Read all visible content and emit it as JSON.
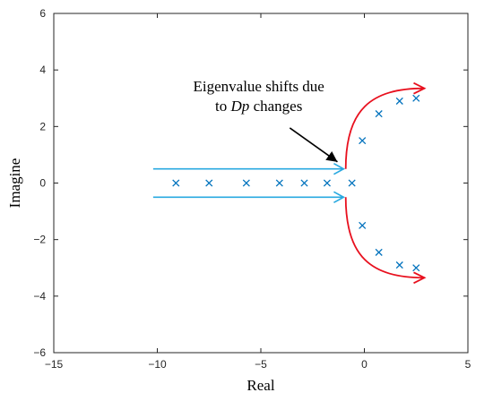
{
  "chart_data": {
    "type": "scatter",
    "xlabel": "Real",
    "ylabel": "Imagine",
    "xlim": [
      -15,
      5
    ],
    "ylim": [
      -6,
      6
    ],
    "xticks": [
      -15,
      -10,
      -5,
      0,
      5
    ],
    "yticks": [
      -6,
      -4,
      -2,
      0,
      2,
      4,
      6
    ],
    "grid": false,
    "marker": "x",
    "colors": {
      "points": "#0072BD",
      "shift_arrows": "#29A9E0",
      "red_arrows": "#E8101E",
      "annotation_arrow": "#000000"
    },
    "series": [
      {
        "points": [
          [
            -9.1,
            0
          ],
          [
            -7.5,
            0
          ],
          [
            -5.7,
            0
          ],
          [
            -4.1,
            0
          ],
          [
            -2.9,
            0
          ],
          [
            -1.8,
            0
          ],
          [
            -0.6,
            0
          ],
          [
            -0.1,
            1.5
          ],
          [
            0.7,
            2.45
          ],
          [
            1.7,
            2.9
          ],
          [
            2.5,
            3.0
          ],
          [
            -0.1,
            -1.5
          ],
          [
            0.7,
            -2.45
          ],
          [
            1.7,
            -2.9
          ],
          [
            2.5,
            -3.0
          ]
        ]
      }
    ],
    "annotation": {
      "line1": "Eigenvalue shifts due",
      "line2_prefix": "to ",
      "line2_italic": "Dp",
      "line2_suffix": " changes"
    }
  }
}
